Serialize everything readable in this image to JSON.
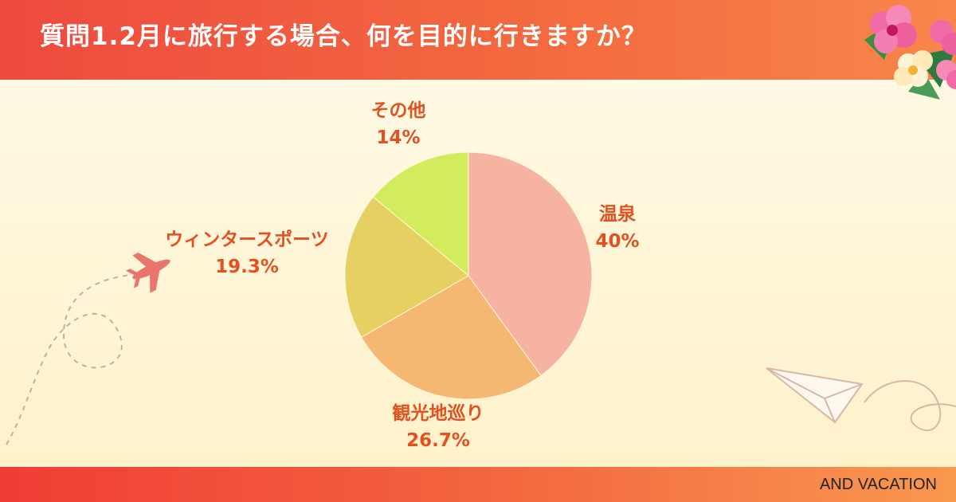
{
  "header": {
    "title": "質問1.2月に旅行する場合、何を目的に行きますか？"
  },
  "footer": {
    "brand": "AND VACATION"
  },
  "theme": {
    "header_gradient": [
      "#ee4a3f",
      "#f8864a"
    ],
    "label_color": "#e4501f",
    "background": "#fff6d8"
  },
  "decorations": [
    "hibiscus-flower-icon",
    "airplane-icon",
    "paper-plane-icon"
  ],
  "chart_data": {
    "type": "pie",
    "title": "質問1.2月に旅行する場合、何を目的に行きますか？",
    "slices": [
      {
        "label": "温泉",
        "value": 40,
        "value_label": "40%",
        "color": "#f7b3a1"
      },
      {
        "label": "観光地巡り",
        "value": 26.7,
        "value_label": "26.7%",
        "color": "#f5b872"
      },
      {
        "label": "ウィンタースポーツ",
        "value": 19.3,
        "value_label": "19.3%",
        "color": "#e6d061"
      },
      {
        "label": "その他",
        "value": 14,
        "value_label": "14%",
        "color": "#d3ec5b"
      }
    ],
    "start_angle": "12 o'clock",
    "direction": "clockwise",
    "legend": "none"
  }
}
